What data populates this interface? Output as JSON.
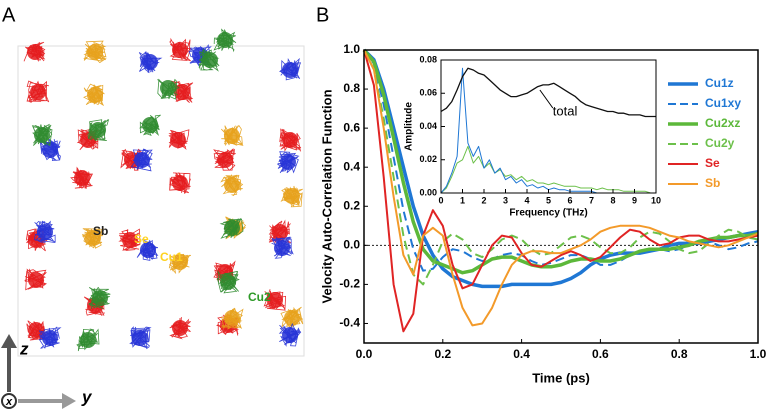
{
  "panel_a": {
    "label": "A",
    "atoms": [
      "Sb",
      "Se",
      "Cu1",
      "Cu2"
    ],
    "axes": [
      "z",
      "x",
      "y"
    ]
  },
  "panel_b_label": "B",
  "chart_data": [
    {
      "type": "line",
      "x_label": "Time (ps)",
      "y_label": "Velocity Auto-Correlation Function",
      "xlim": [
        0,
        1
      ],
      "ylim": [
        -0.5,
        1
      ],
      "xticks": [
        {
          "value": 0,
          "label": "0.0"
        },
        0.2,
        0.4,
        0.6,
        0.8,
        {
          "value": 1,
          "label": "1.0"
        }
      ],
      "yticks": [
        -0.4,
        -0.2,
        {
          "value": 0,
          "label": "0.0"
        },
        0.2,
        0.4,
        0.6,
        0.8,
        {
          "value": 1,
          "label": "1.0"
        }
      ],
      "x": [
        0,
        0.025,
        0.05,
        0.075,
        0.1,
        0.125,
        0.15,
        0.175,
        0.2,
        0.225,
        0.25,
        0.275,
        0.3,
        0.325,
        0.35,
        0.375,
        0.4,
        0.425,
        0.45,
        0.475,
        0.5,
        0.525,
        0.55,
        0.575,
        0.6,
        0.625,
        0.65,
        0.675,
        0.7,
        0.725,
        0.75,
        0.775,
        0.8,
        0.825,
        0.85,
        0.875,
        0.9,
        0.925,
        0.95,
        0.975,
        1
      ],
      "series": [
        {
          "name": "Cu1z",
          "color": "#1f77d4",
          "width": 3.5,
          "dash": false,
          "values": [
            1,
            0.95,
            0.8,
            0.6,
            0.4,
            0.2,
            0.05,
            -0.05,
            -0.12,
            -0.16,
            -0.18,
            -0.2,
            -0.21,
            -0.21,
            -0.21,
            -0.2,
            -0.2,
            -0.2,
            -0.2,
            -0.2,
            -0.19,
            -0.17,
            -0.14,
            -0.1,
            -0.07,
            -0.05,
            -0.04,
            -0.04,
            -0.04,
            -0.03,
            -0.02,
            0,
            0.01,
            0.01,
            0.01,
            0.02,
            0.03,
            0.04,
            0.05,
            0.06,
            0.07
          ]
        },
        {
          "name": "Cu1xy",
          "color": "#1f77d4",
          "width": 2,
          "dash": true,
          "values": [
            1,
            0.93,
            0.72,
            0.45,
            0.18,
            -0.02,
            -0.13,
            -0.12,
            -0.06,
            -0.02,
            -0.03,
            -0.06,
            -0.08,
            -0.07,
            -0.05,
            -0.04,
            -0.05,
            -0.08,
            -0.1,
            -0.09,
            -0.07,
            -0.05,
            -0.05,
            -0.07,
            -0.1,
            -0.1,
            -0.08,
            -0.05,
            -0.03,
            -0.02,
            -0.02,
            -0.03,
            -0.02,
            0,
            0.02,
            0.02,
            0,
            -0.02,
            -0.01,
            0.01,
            0.02
          ]
        },
        {
          "name": "Cu2xz",
          "color": "#5cb83a",
          "width": 3.5,
          "dash": false,
          "values": [
            1,
            0.94,
            0.77,
            0.55,
            0.32,
            0.12,
            -0.02,
            -0.08,
            -0.1,
            -0.12,
            -0.14,
            -0.13,
            -0.1,
            -0.07,
            -0.06,
            -0.06,
            -0.08,
            -0.1,
            -0.11,
            -0.11,
            -0.1,
            -0.08,
            -0.07,
            -0.07,
            -0.08,
            -0.08,
            -0.07,
            -0.05,
            -0.03,
            -0.02,
            -0.02,
            -0.02,
            -0.01,
            0,
            0.02,
            0.03,
            0.04,
            0.04,
            0.05,
            0.05,
            0.06
          ]
        },
        {
          "name": "Cu2y",
          "color": "#6cc04a",
          "width": 2,
          "dash": true,
          "values": [
            1,
            0.9,
            0.65,
            0.35,
            0.05,
            -0.15,
            -0.2,
            -0.1,
            0.02,
            0.06,
            0.03,
            -0.04,
            -0.06,
            -0.02,
            0.03,
            0.05,
            0.03,
            -0.02,
            -0.05,
            -0.04,
            0,
            0.04,
            0.05,
            0.03,
            -0.01,
            -0.04,
            -0.04,
            -0.01,
            0.04,
            0.07,
            0.06,
            0.02,
            -0.02,
            -0.04,
            -0.03,
            0.01,
            0.05,
            0.08,
            0.07,
            0.04,
            0.03
          ]
        },
        {
          "name": "Se",
          "color": "#e02424",
          "width": 2,
          "dash": false,
          "values": [
            1,
            0.82,
            0.35,
            -0.2,
            -0.44,
            -0.35,
            0.05,
            0.18,
            0.1,
            -0.1,
            -0.22,
            -0.2,
            -0.1,
            0,
            0.05,
            0.04,
            -0.04,
            -0.1,
            -0.11,
            -0.08,
            -0.05,
            -0.03,
            -0.05,
            -0.08,
            -0.06,
            -0.01,
            0.04,
            0.08,
            0.07,
            0.03,
            0,
            0.01,
            0.04,
            0.05,
            0.05,
            0.03,
            0.02,
            0.02,
            0.03,
            0.04,
            0.05
          ]
        },
        {
          "name": "Sb",
          "color": "#f39a2a",
          "width": 2,
          "dash": false,
          "values": [
            1,
            0.9,
            0.6,
            0.25,
            -0.05,
            -0.15,
            0.05,
            0.09,
            0.05,
            -0.15,
            -0.32,
            -0.41,
            -0.4,
            -0.32,
            -0.2,
            -0.1,
            -0.05,
            -0.03,
            -0.03,
            -0.04,
            -0.04,
            -0.02,
            0,
            0.03,
            0.07,
            0.09,
            0.1,
            0.1,
            0.1,
            0.09,
            0.07,
            0.05,
            0.04,
            0.02,
            0.01,
            0,
            -0.01,
            0,
            0.02,
            0.04,
            0.06
          ]
        }
      ]
    },
    {
      "type": "line",
      "x_label": "Frequency (THz)",
      "y_label": "Amplitude",
      "annotation": "total",
      "xlim": [
        0,
        10
      ],
      "ylim": [
        0,
        0.08
      ],
      "xticks": [
        0,
        1,
        2,
        3,
        4,
        5,
        6,
        7,
        8,
        9,
        10
      ],
      "yticks": [
        {
          "value": 0,
          "label": "0.00"
        },
        0.02,
        0.04,
        0.06,
        0.08
      ],
      "x": [
        0,
        0.25,
        0.5,
        0.75,
        1,
        1.25,
        1.5,
        1.75,
        2,
        2.25,
        2.5,
        2.75,
        3,
        3.25,
        3.5,
        3.75,
        4,
        4.25,
        4.5,
        4.75,
        5,
        5.25,
        5.5,
        5.75,
        6,
        6.25,
        6.5,
        6.75,
        7,
        7.25,
        7.5,
        7.75,
        8,
        8.25,
        8.5,
        8.75,
        9,
        9.25,
        9.5,
        9.75,
        10
      ],
      "series": [
        {
          "color": "#6cc04a",
          "width": 1,
          "values": [
            0,
            0.003,
            0.01,
            0.018,
            0.02,
            0.028,
            0.018,
            0.022,
            0.015,
            0.018,
            0.012,
            0.014,
            0.01,
            0.011,
            0.008,
            0.01,
            0.007,
            0.008,
            0.006,
            0.006,
            0.005,
            0.006,
            0.005,
            0.004,
            0.004,
            0.004,
            0.003,
            0.003,
            0.003,
            0.002,
            0.003,
            0.002,
            0.002,
            0.002,
            0.001,
            0.001,
            0.001,
            0.001,
            0.001,
            0,
            0
          ]
        },
        {
          "color": "#1f77d4",
          "width": 1,
          "values": [
            0,
            0.004,
            0.012,
            0.022,
            0.075,
            0.03,
            0.022,
            0.028,
            0.015,
            0.02,
            0.012,
            0.015,
            0.008,
            0.01,
            0.006,
            0.008,
            0.004,
            0.005,
            0.003,
            0.004,
            0.002,
            0.003,
            0.002,
            0.002,
            0.001,
            0.001,
            0.001,
            0.001,
            0.001,
            0,
            0,
            0,
            0,
            0,
            0,
            0,
            0,
            0,
            0,
            0,
            0
          ]
        },
        {
          "color": "#111111",
          "width": 1.3,
          "values": [
            0.049,
            0.051,
            0.055,
            0.062,
            0.07,
            0.075,
            0.074,
            0.072,
            0.071,
            0.068,
            0.065,
            0.062,
            0.06,
            0.058,
            0.058,
            0.059,
            0.06,
            0.062,
            0.064,
            0.065,
            0.065,
            0.066,
            0.064,
            0.062,
            0.06,
            0.058,
            0.055,
            0.053,
            0.052,
            0.051,
            0.05,
            0.049,
            0.049,
            0.048,
            0.048,
            0.047,
            0.047,
            0.047,
            0.046,
            0.046,
            0.046
          ]
        }
      ]
    }
  ]
}
